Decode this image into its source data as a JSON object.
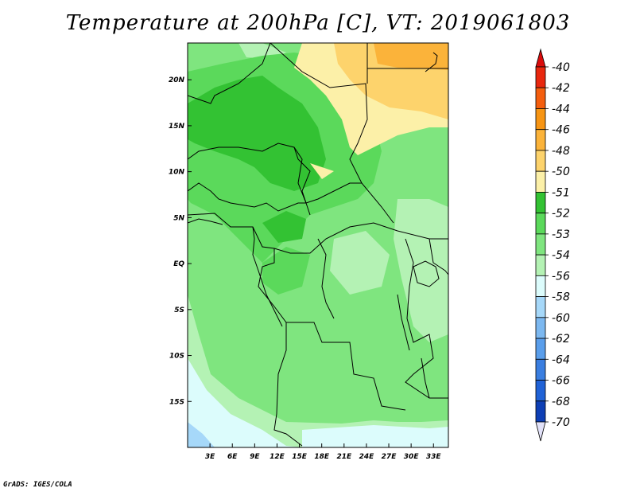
{
  "title": "Temperature at 200hPa [C], VT: 2019061803",
  "credit": "GrADS: IGES/COLA",
  "map": {
    "lon_range": [
      0,
      35
    ],
    "lat_range": [
      -20,
      24
    ],
    "lon_ticks": [
      "3E",
      "6E",
      "9E",
      "12E",
      "15E",
      "18E",
      "21E",
      "24E",
      "27E",
      "30E",
      "33E"
    ],
    "lon_tick_values": [
      3,
      6,
      9,
      12,
      15,
      18,
      21,
      24,
      27,
      30,
      33
    ],
    "lat_ticks": [
      "20N",
      "15N",
      "10N",
      "5N",
      "EQ",
      "5S",
      "10S",
      "15S"
    ],
    "lat_tick_values": [
      20,
      15,
      10,
      5,
      0,
      -5,
      -10,
      -15
    ]
  },
  "colorbar": {
    "labels": [
      "-40",
      "-42",
      "-44",
      "-46",
      "-48",
      "-50",
      "-51",
      "-52",
      "-53",
      "-54",
      "-56",
      "-58",
      "-60",
      "-62",
      "-64",
      "-66",
      "-68",
      "-70"
    ],
    "colors": [
      "#e8270e",
      "#f45e0e",
      "#f79514",
      "#fbb33a",
      "#fdd36c",
      "#fcf0a8",
      "#33c233",
      "#5bd95b",
      "#7fe57f",
      "#b4f2b4",
      "#dcfcfc",
      "#a6d8f9",
      "#7cb8f0",
      "#5a9eeb",
      "#3a7ee0",
      "#2062d6",
      "#0e3fb5",
      "#0a1d80"
    ],
    "over_color": "#da0c0c",
    "under_color": "#e1e1f8"
  }
}
